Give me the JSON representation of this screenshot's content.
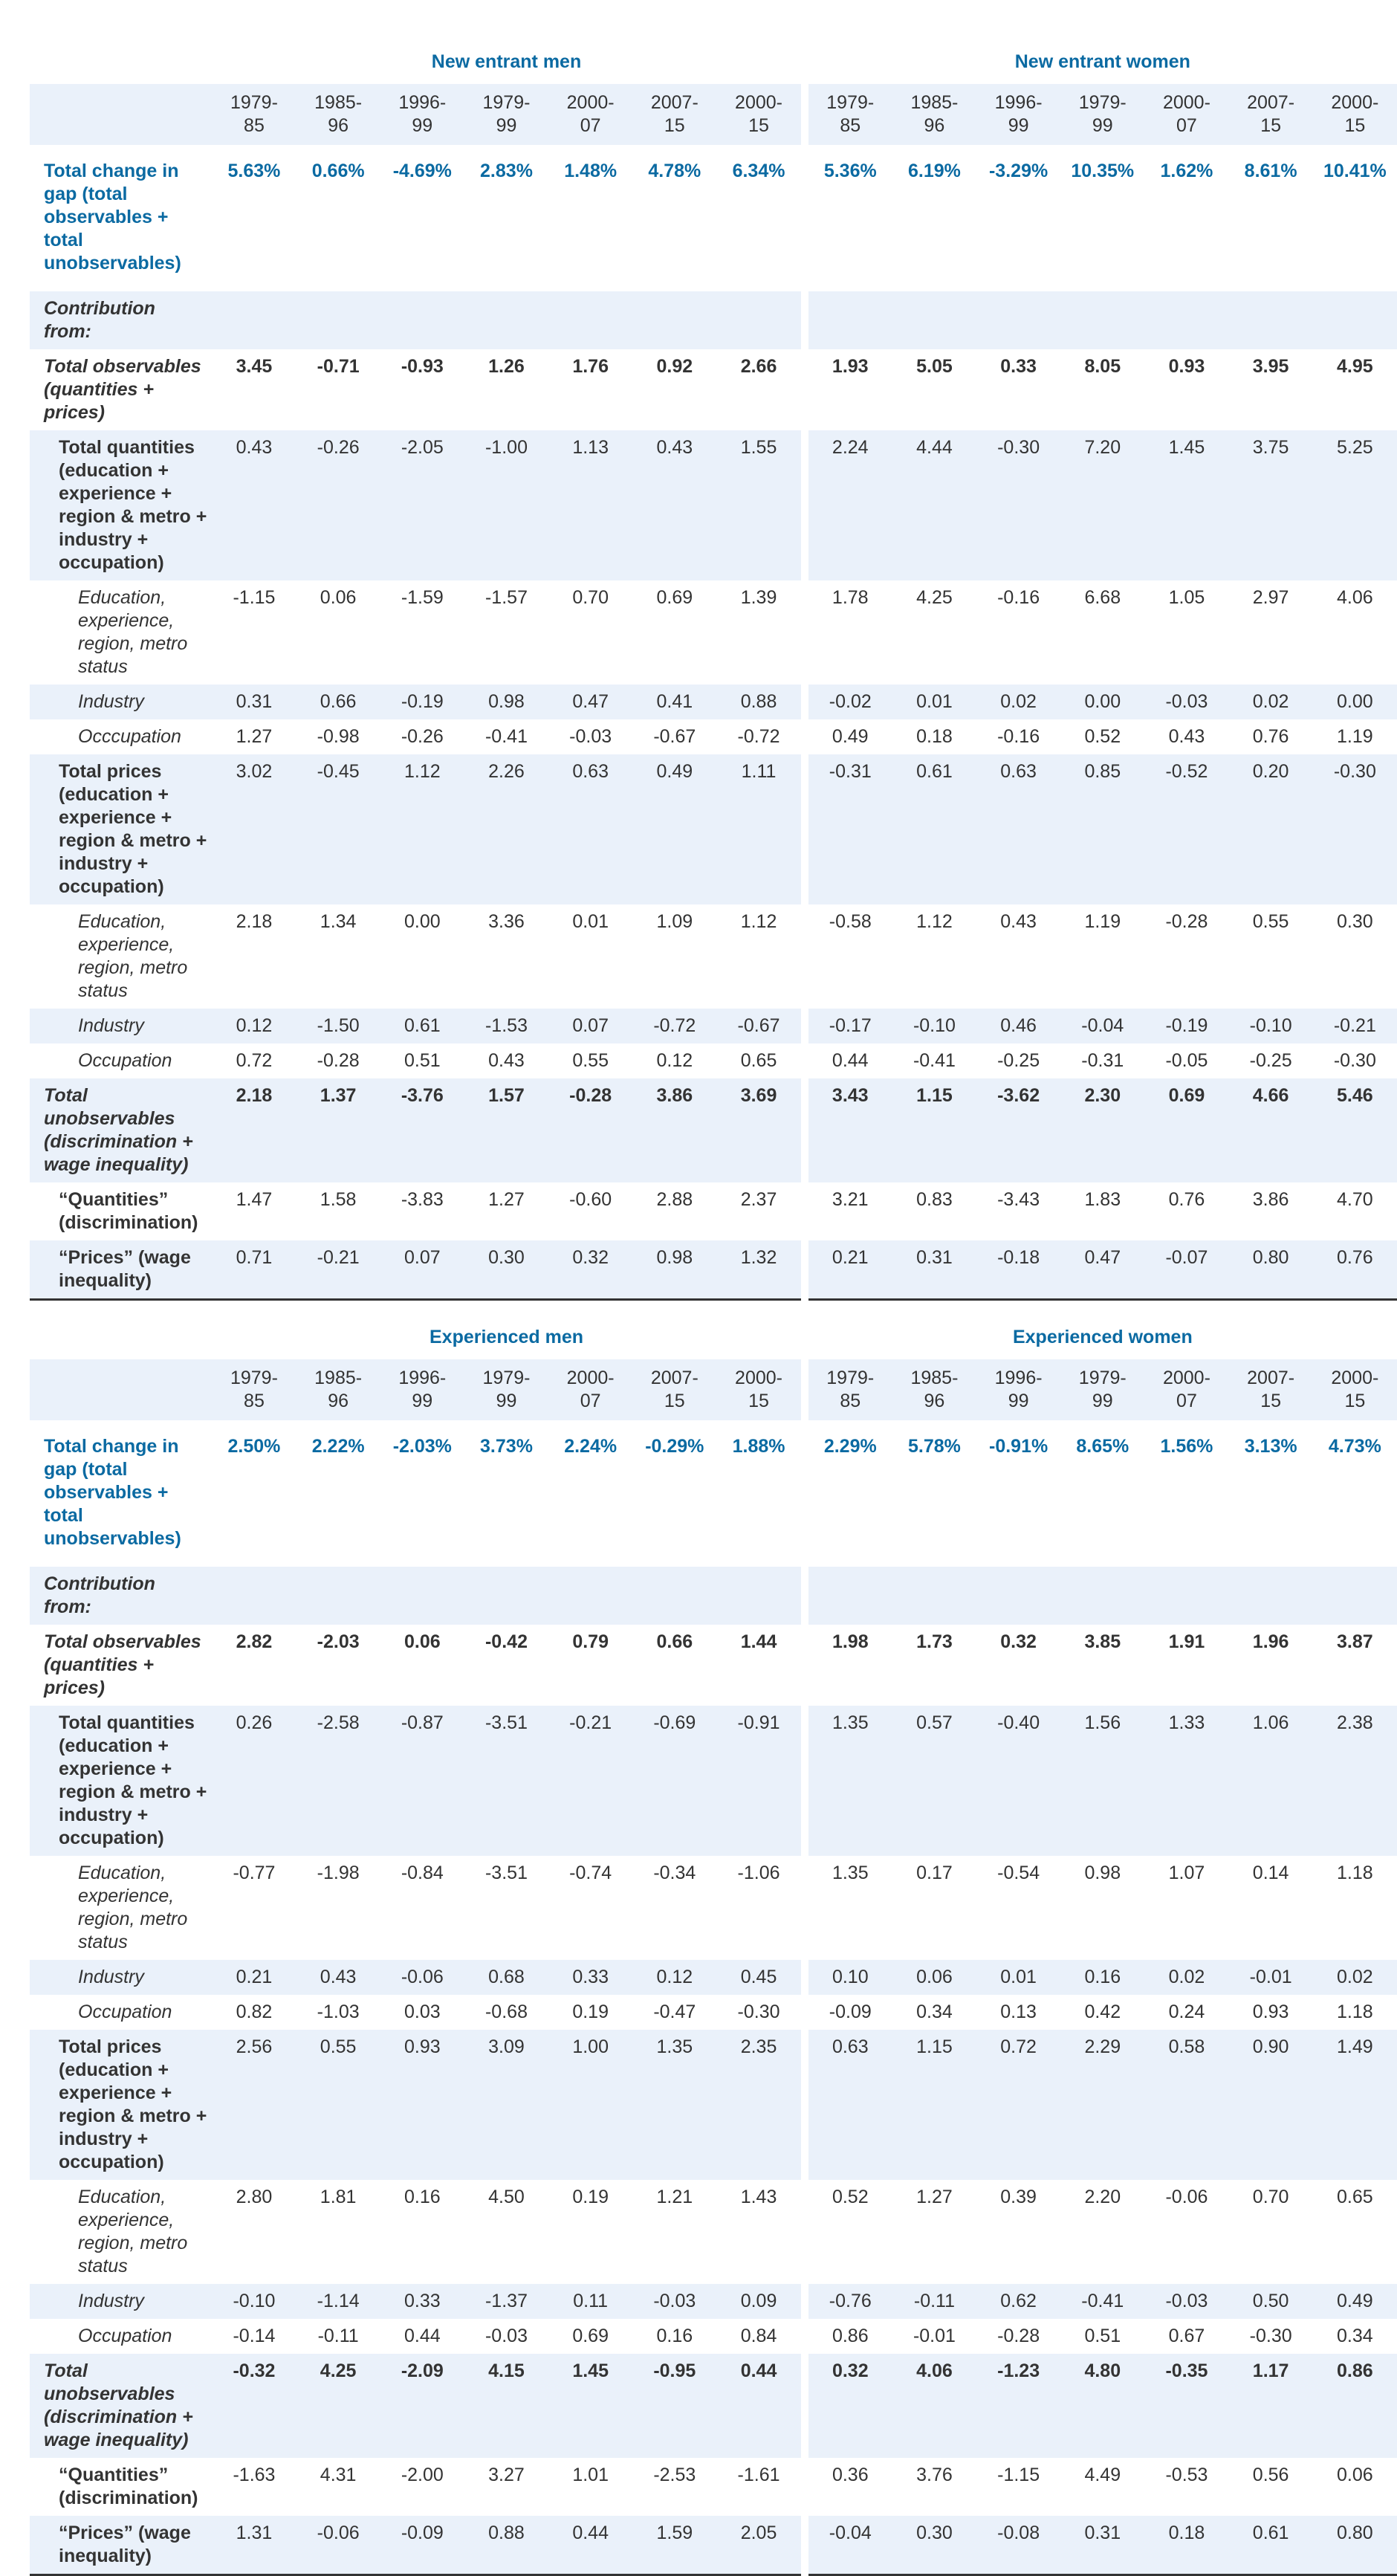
{
  "colors": {
    "accent": "#0b6aa2",
    "row_shade": "#eaf1fa",
    "text": "#333333"
  },
  "years": [
    "1979-85",
    "1985-96",
    "1996-99",
    "1979-99",
    "2000-07",
    "2007-15",
    "2000-15"
  ],
  "tables": [
    {
      "groups": [
        "New entrant men",
        "New entrant women"
      ],
      "rows": [
        {
          "label": "Total change in gap (total observables + total unobservables)",
          "style": "change",
          "a": [
            "5.63%",
            "0.66%",
            "-4.69%",
            "2.83%",
            "1.48%",
            "4.78%",
            "6.34%"
          ],
          "b": [
            "5.36%",
            "6.19%",
            "-3.29%",
            "10.35%",
            "1.62%",
            "8.61%",
            "10.41%"
          ]
        },
        {
          "label": "Contribution from:",
          "style": "contrib",
          "a": [
            "",
            "",
            "",
            "",
            "",
            "",
            ""
          ],
          "b": [
            "",
            "",
            "",
            "",
            "",
            "",
            ""
          ]
        },
        {
          "label": "Total observables (quantities + prices)",
          "style": "obs",
          "a": [
            "3.45",
            "-0.71",
            "-0.93",
            "1.26",
            "1.76",
            "0.92",
            "2.66"
          ],
          "b": [
            "1.93",
            "5.05",
            "0.33",
            "8.05",
            "0.93",
            "3.95",
            "4.95"
          ]
        },
        {
          "label": "Total quantities (education + experience + region & metro + industry + occupation)",
          "style": "sub",
          "a": [
            "0.43",
            "-0.26",
            "-2.05",
            "-1.00",
            "1.13",
            "0.43",
            "1.55"
          ],
          "b": [
            "2.24",
            "4.44",
            "-0.30",
            "7.20",
            "1.45",
            "3.75",
            "5.25"
          ]
        },
        {
          "label": "Education, experience, region, metro status",
          "style": "detail",
          "a": [
            "-1.15",
            "0.06",
            "-1.59",
            "-1.57",
            "0.70",
            "0.69",
            "1.39"
          ],
          "b": [
            "1.78",
            "4.25",
            "-0.16",
            "6.68",
            "1.05",
            "2.97",
            "4.06"
          ]
        },
        {
          "label": "Industry",
          "style": "detail",
          "a": [
            "0.31",
            "0.66",
            "-0.19",
            "0.98",
            "0.47",
            "0.41",
            "0.88"
          ],
          "b": [
            "-0.02",
            "0.01",
            "0.02",
            "0.00",
            "-0.03",
            "0.02",
            "0.00"
          ]
        },
        {
          "label": "Occcupation",
          "style": "detail",
          "a": [
            "1.27",
            "-0.98",
            "-0.26",
            "-0.41",
            "-0.03",
            "-0.67",
            "-0.72"
          ],
          "b": [
            "0.49",
            "0.18",
            "-0.16",
            "0.52",
            "0.43",
            "0.76",
            "1.19"
          ]
        },
        {
          "label": "Total prices (education + experience + region & metro + industry + occupation)",
          "style": "sub",
          "a": [
            "3.02",
            "-0.45",
            "1.12",
            "2.26",
            "0.63",
            "0.49",
            "1.11"
          ],
          "b": [
            "-0.31",
            "0.61",
            "0.63",
            "0.85",
            "-0.52",
            "0.20",
            "-0.30"
          ]
        },
        {
          "label": "Education, experience, region, metro status",
          "style": "detail",
          "a": [
            "2.18",
            "1.34",
            "0.00",
            "3.36",
            "0.01",
            "1.09",
            "1.12"
          ],
          "b": [
            "-0.58",
            "1.12",
            "0.43",
            "1.19",
            "-0.28",
            "0.55",
            "0.30"
          ]
        },
        {
          "label": "Industry",
          "style": "detail",
          "a": [
            "0.12",
            "-1.50",
            "0.61",
            "-1.53",
            "0.07",
            "-0.72",
            "-0.67"
          ],
          "b": [
            "-0.17",
            "-0.10",
            "0.46",
            "-0.04",
            "-0.19",
            "-0.10",
            "-0.21"
          ]
        },
        {
          "label": "Occupation",
          "style": "detail",
          "a": [
            "0.72",
            "-0.28",
            "0.51",
            "0.43",
            "0.55",
            "0.12",
            "0.65"
          ],
          "b": [
            "0.44",
            "-0.41",
            "-0.25",
            "-0.31",
            "-0.05",
            "-0.25",
            "-0.30"
          ]
        },
        {
          "label": "Total unobservables (discrimination + wage inequality)",
          "style": "obs",
          "a": [
            "2.18",
            "1.37",
            "-3.76",
            "1.57",
            "-0.28",
            "3.86",
            "3.69"
          ],
          "b": [
            "3.43",
            "1.15",
            "-3.62",
            "2.30",
            "0.69",
            "4.66",
            "5.46"
          ]
        },
        {
          "label": "“Quantities” (discrimination)",
          "style": "sub",
          "a": [
            "1.47",
            "1.58",
            "-3.83",
            "1.27",
            "-0.60",
            "2.88",
            "2.37"
          ],
          "b": [
            "3.21",
            "0.83",
            "-3.43",
            "1.83",
            "0.76",
            "3.86",
            "4.70"
          ]
        },
        {
          "label": "“Prices” (wage inequality)",
          "style": "sub",
          "a": [
            "0.71",
            "-0.21",
            "0.07",
            "0.30",
            "0.32",
            "0.98",
            "1.32"
          ],
          "b": [
            "0.21",
            "0.31",
            "-0.18",
            "0.47",
            "-0.07",
            "0.80",
            "0.76"
          ]
        }
      ]
    },
    {
      "groups": [
        "Experienced men",
        "Experienced women"
      ],
      "rows": [
        {
          "label": "Total change in gap (total observables + total unobservables)",
          "style": "change",
          "a": [
            "2.50%",
            "2.22%",
            "-2.03%",
            "3.73%",
            "2.24%",
            "-0.29%",
            "1.88%"
          ],
          "b": [
            "2.29%",
            "5.78%",
            "-0.91%",
            "8.65%",
            "1.56%",
            "3.13%",
            "4.73%"
          ]
        },
        {
          "label": "Contribution from:",
          "style": "contrib",
          "a": [
            "",
            "",
            "",
            "",
            "",
            "",
            ""
          ],
          "b": [
            "",
            "",
            "",
            "",
            "",
            "",
            ""
          ]
        },
        {
          "label": "Total observables (quantities + prices)",
          "style": "obs",
          "a": [
            "2.82",
            "-2.03",
            "0.06",
            "-0.42",
            "0.79",
            "0.66",
            "1.44"
          ],
          "b": [
            "1.98",
            "1.73",
            "0.32",
            "3.85",
            "1.91",
            "1.96",
            "3.87"
          ]
        },
        {
          "label": "Total quantities (education + experience + region & metro + industry + occupation)",
          "style": "sub",
          "a": [
            "0.26",
            "-2.58",
            "-0.87",
            "-3.51",
            "-0.21",
            "-0.69",
            "-0.91"
          ],
          "b": [
            "1.35",
            "0.57",
            "-0.40",
            "1.56",
            "1.33",
            "1.06",
            "2.38"
          ]
        },
        {
          "label": "Education, experience, region, metro status",
          "style": "detail",
          "a": [
            "-0.77",
            "-1.98",
            "-0.84",
            "-3.51",
            "-0.74",
            "-0.34",
            "-1.06"
          ],
          "b": [
            "1.35",
            "0.17",
            "-0.54",
            "0.98",
            "1.07",
            "0.14",
            "1.18"
          ]
        },
        {
          "label": "Industry",
          "style": "detail",
          "a": [
            "0.21",
            "0.43",
            "-0.06",
            "0.68",
            "0.33",
            "0.12",
            "0.45"
          ],
          "b": [
            "0.10",
            "0.06",
            "0.01",
            "0.16",
            "0.02",
            "-0.01",
            "0.02"
          ]
        },
        {
          "label": "Occupation",
          "style": "detail",
          "a": [
            "0.82",
            "-1.03",
            "0.03",
            "-0.68",
            "0.19",
            "-0.47",
            "-0.30"
          ],
          "b": [
            "-0.09",
            "0.34",
            "0.13",
            "0.42",
            "0.24",
            "0.93",
            "1.18"
          ]
        },
        {
          "label": "Total prices (education + experience + region & metro + industry + occupation)",
          "style": "sub",
          "a": [
            "2.56",
            "0.55",
            "0.93",
            "3.09",
            "1.00",
            "1.35",
            "2.35"
          ],
          "b": [
            "0.63",
            "1.15",
            "0.72",
            "2.29",
            "0.58",
            "0.90",
            "1.49"
          ]
        },
        {
          "label": "Education, experience, region, metro status",
          "style": "detail",
          "a": [
            "2.80",
            "1.81",
            "0.16",
            "4.50",
            "0.19",
            "1.21",
            "1.43"
          ],
          "b": [
            "0.52",
            "1.27",
            "0.39",
            "2.20",
            "-0.06",
            "0.70",
            "0.65"
          ]
        },
        {
          "label": "Industry",
          "style": "detail",
          "a": [
            "-0.10",
            "-1.14",
            "0.33",
            "-1.37",
            "0.11",
            "-0.03",
            "0.09"
          ],
          "b": [
            "-0.76",
            "-0.11",
            "0.62",
            "-0.41",
            "-0.03",
            "0.50",
            "0.49"
          ]
        },
        {
          "label": "Occupation",
          "style": "detail",
          "a": [
            "-0.14",
            "-0.11",
            "0.44",
            "-0.03",
            "0.69",
            "0.16",
            "0.84"
          ],
          "b": [
            "0.86",
            "-0.01",
            "-0.28",
            "0.51",
            "0.67",
            "-0.30",
            "0.34"
          ]
        },
        {
          "label": "Total unobservables (discrimination + wage inequality)",
          "style": "obs",
          "a": [
            "-0.32",
            "4.25",
            "-2.09",
            "4.15",
            "1.45",
            "-0.95",
            "0.44"
          ],
          "b": [
            "0.32",
            "4.06",
            "-1.23",
            "4.80",
            "-0.35",
            "1.17",
            "0.86"
          ]
        },
        {
          "label": "“Quantities” (discrimination)",
          "style": "sub",
          "a": [
            "-1.63",
            "4.31",
            "-2.00",
            "3.27",
            "1.01",
            "-2.53",
            "-1.61"
          ],
          "b": [
            "0.36",
            "3.76",
            "-1.15",
            "4.49",
            "-0.53",
            "0.56",
            "0.06"
          ]
        },
        {
          "label": "“Prices” (wage inequality)",
          "style": "sub",
          "a": [
            "1.31",
            "-0.06",
            "-0.09",
            "0.88",
            "0.44",
            "1.59",
            "2.05"
          ],
          "b": [
            "-0.04",
            "0.30",
            "-0.08",
            "0.31",
            "0.18",
            "0.61",
            "0.80"
          ]
        }
      ]
    }
  ]
}
